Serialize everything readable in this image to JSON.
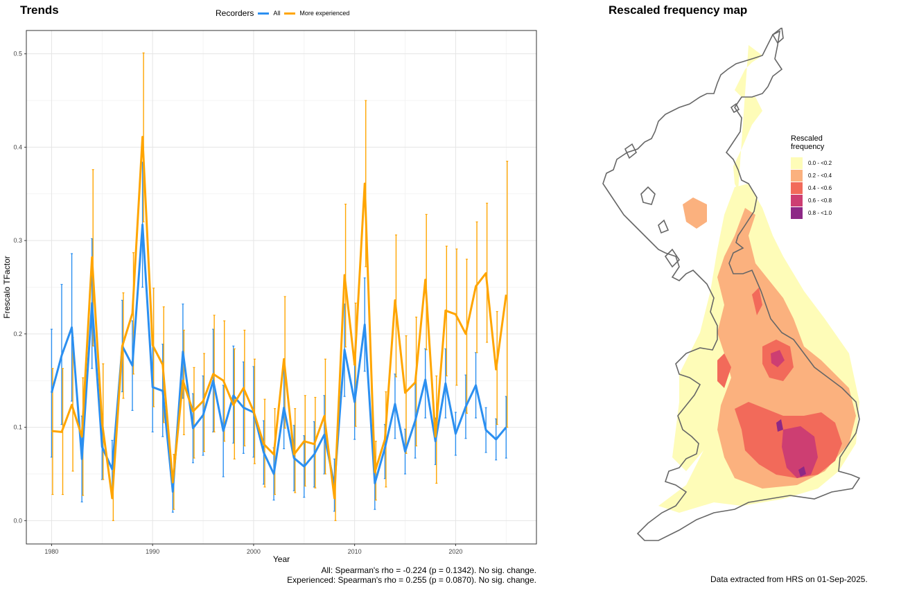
{
  "titles": {
    "trends": "Trends",
    "map": "Rescaled frequency map"
  },
  "legend": {
    "title": "Recorders",
    "items": [
      {
        "label": "All",
        "color": "#2b8ff0"
      },
      {
        "label": "More experienced",
        "color": "#ffa500"
      }
    ]
  },
  "footer": {
    "stats_all": "All: Spearman's rho = -0.224 (p = 0.1342). No sig. change.",
    "stats_experienced": "Experienced: Spearman's rho = 0.255 (p = 0.0870). No sig. change.",
    "data_extracted": "Data extracted from HRS on 01-Sep-2025."
  },
  "chart_data": {
    "type": "line",
    "title": "Trends",
    "xlabel": "Year",
    "ylabel": "Frescalo TFactor",
    "xlim": [
      1977.5,
      2028
    ],
    "ylim": [
      -0.025,
      0.525
    ],
    "xticks": [
      1980,
      1990,
      2000,
      2010,
      2020
    ],
    "yticks": [
      0.0,
      0.1,
      0.2,
      0.3,
      0.4,
      0.5
    ],
    "ytick_labels": [
      "0.0",
      "0.1",
      "0.2",
      "0.3",
      "0.4",
      "0.5"
    ],
    "grid": true,
    "legend_position": "top",
    "x": [
      1980,
      1981,
      1982,
      1983,
      1984,
      1985,
      1986,
      1987,
      1988,
      1989,
      1990,
      1991,
      1992,
      1993,
      1994,
      1995,
      1996,
      1997,
      1998,
      1999,
      2000,
      2001,
      2002,
      2003,
      2004,
      2005,
      2006,
      2007,
      2008,
      2009,
      2010,
      2011,
      2012,
      2013,
      2014,
      2015,
      2016,
      2017,
      2018,
      2019,
      2020,
      2021,
      2022,
      2023,
      2024,
      2025
    ],
    "series": [
      {
        "name": "All",
        "color": "#2b8ff0",
        "values": [
          0.137,
          0.177,
          0.207,
          0.066,
          0.233,
          0.079,
          0.055,
          0.187,
          0.166,
          0.317,
          0.143,
          0.139,
          0.031,
          0.181,
          0.099,
          0.113,
          0.15,
          0.096,
          0.134,
          0.121,
          0.116,
          0.073,
          0.05,
          0.121,
          0.067,
          0.058,
          0.071,
          0.092,
          0.038,
          0.183,
          0.127,
          0.21,
          0.04,
          0.078,
          0.125,
          0.074,
          0.107,
          0.151,
          0.085,
          0.147,
          0.093,
          0.122,
          0.145,
          0.097,
          0.087,
          0.1
        ],
        "lower": [
          0.068,
          0.103,
          0.128,
          0.02,
          0.163,
          0.044,
          0.024,
          0.138,
          0.118,
          0.25,
          0.095,
          0.09,
          0.009,
          0.131,
          0.062,
          0.07,
          0.095,
          0.047,
          0.083,
          0.072,
          0.068,
          0.039,
          0.022,
          0.077,
          0.032,
          0.025,
          0.036,
          0.05,
          0.01,
          0.133,
          0.087,
          0.16,
          0.012,
          0.045,
          0.088,
          0.05,
          0.067,
          0.11,
          0.06,
          0.11,
          0.07,
          0.088,
          0.11,
          0.073,
          0.065,
          0.067
        ],
        "upper": [
          0.205,
          0.253,
          0.286,
          0.112,
          0.302,
          0.114,
          0.086,
          0.236,
          0.214,
          0.384,
          0.19,
          0.189,
          0.053,
          0.232,
          0.136,
          0.155,
          0.205,
          0.145,
          0.187,
          0.17,
          0.165,
          0.107,
          0.078,
          0.165,
          0.102,
          0.091,
          0.106,
          0.134,
          0.066,
          0.232,
          0.167,
          0.26,
          0.068,
          0.103,
          0.157,
          0.098,
          0.147,
          0.184,
          0.11,
          0.184,
          0.116,
          0.156,
          0.18,
          0.121,
          0.109,
          0.133
        ]
      },
      {
        "name": "More experienced",
        "color": "#ffa500",
        "values": [
          0.096,
          0.095,
          0.124,
          0.09,
          0.282,
          0.105,
          0.024,
          0.187,
          0.222,
          0.411,
          0.188,
          0.167,
          0.041,
          0.15,
          0.117,
          0.128,
          0.157,
          0.15,
          0.124,
          0.142,
          0.117,
          0.082,
          0.071,
          0.173,
          0.071,
          0.085,
          0.082,
          0.112,
          0.024,
          0.263,
          0.167,
          0.361,
          0.052,
          0.087,
          0.236,
          0.137,
          0.148,
          0.258,
          0.09,
          0.225,
          0.221,
          0.2,
          0.251,
          0.265,
          0.162,
          0.242
        ],
        "lower": [
          0.028,
          0.028,
          0.053,
          0.027,
          0.187,
          0.044,
          0.0,
          0.131,
          0.157,
          0.32,
          0.122,
          0.105,
          0.012,
          0.092,
          0.067,
          0.074,
          0.095,
          0.085,
          0.066,
          0.08,
          0.061,
          0.036,
          0.028,
          0.099,
          0.03,
          0.037,
          0.035,
          0.05,
          0.0,
          0.186,
          0.101,
          0.272,
          0.022,
          0.036,
          0.154,
          0.072,
          0.08,
          0.183,
          0.04,
          0.155,
          0.145,
          0.115,
          0.18,
          0.191,
          0.103,
          0.1
        ],
        "upper": [
          0.163,
          0.163,
          0.196,
          0.153,
          0.376,
          0.168,
          0.053,
          0.244,
          0.287,
          0.501,
          0.249,
          0.229,
          0.071,
          0.204,
          0.164,
          0.179,
          0.22,
          0.214,
          0.184,
          0.204,
          0.173,
          0.13,
          0.12,
          0.24,
          0.12,
          0.134,
          0.132,
          0.173,
          0.053,
          0.339,
          0.233,
          0.45,
          0.085,
          0.138,
          0.306,
          0.198,
          0.218,
          0.328,
          0.155,
          0.294,
          0.291,
          0.28,
          0.32,
          0.34,
          0.224,
          0.385
        ]
      }
    ]
  },
  "map": {
    "legend_title_line1": "Rescaled",
    "legend_title_line2": "frequency",
    "classes": [
      {
        "label": "0.0 - <0.2",
        "color": "#fefcb8"
      },
      {
        "label": "0.2 - <0.4",
        "color": "#fbb17e"
      },
      {
        "label": "0.4 - <0.6",
        "color": "#f26a5a"
      },
      {
        "label": "0.6 - <0.8",
        "color": "#cd3e72"
      },
      {
        "label": "0.8 - <1.0",
        "color": "#8d2886"
      }
    ],
    "outline_color": "#666666"
  }
}
